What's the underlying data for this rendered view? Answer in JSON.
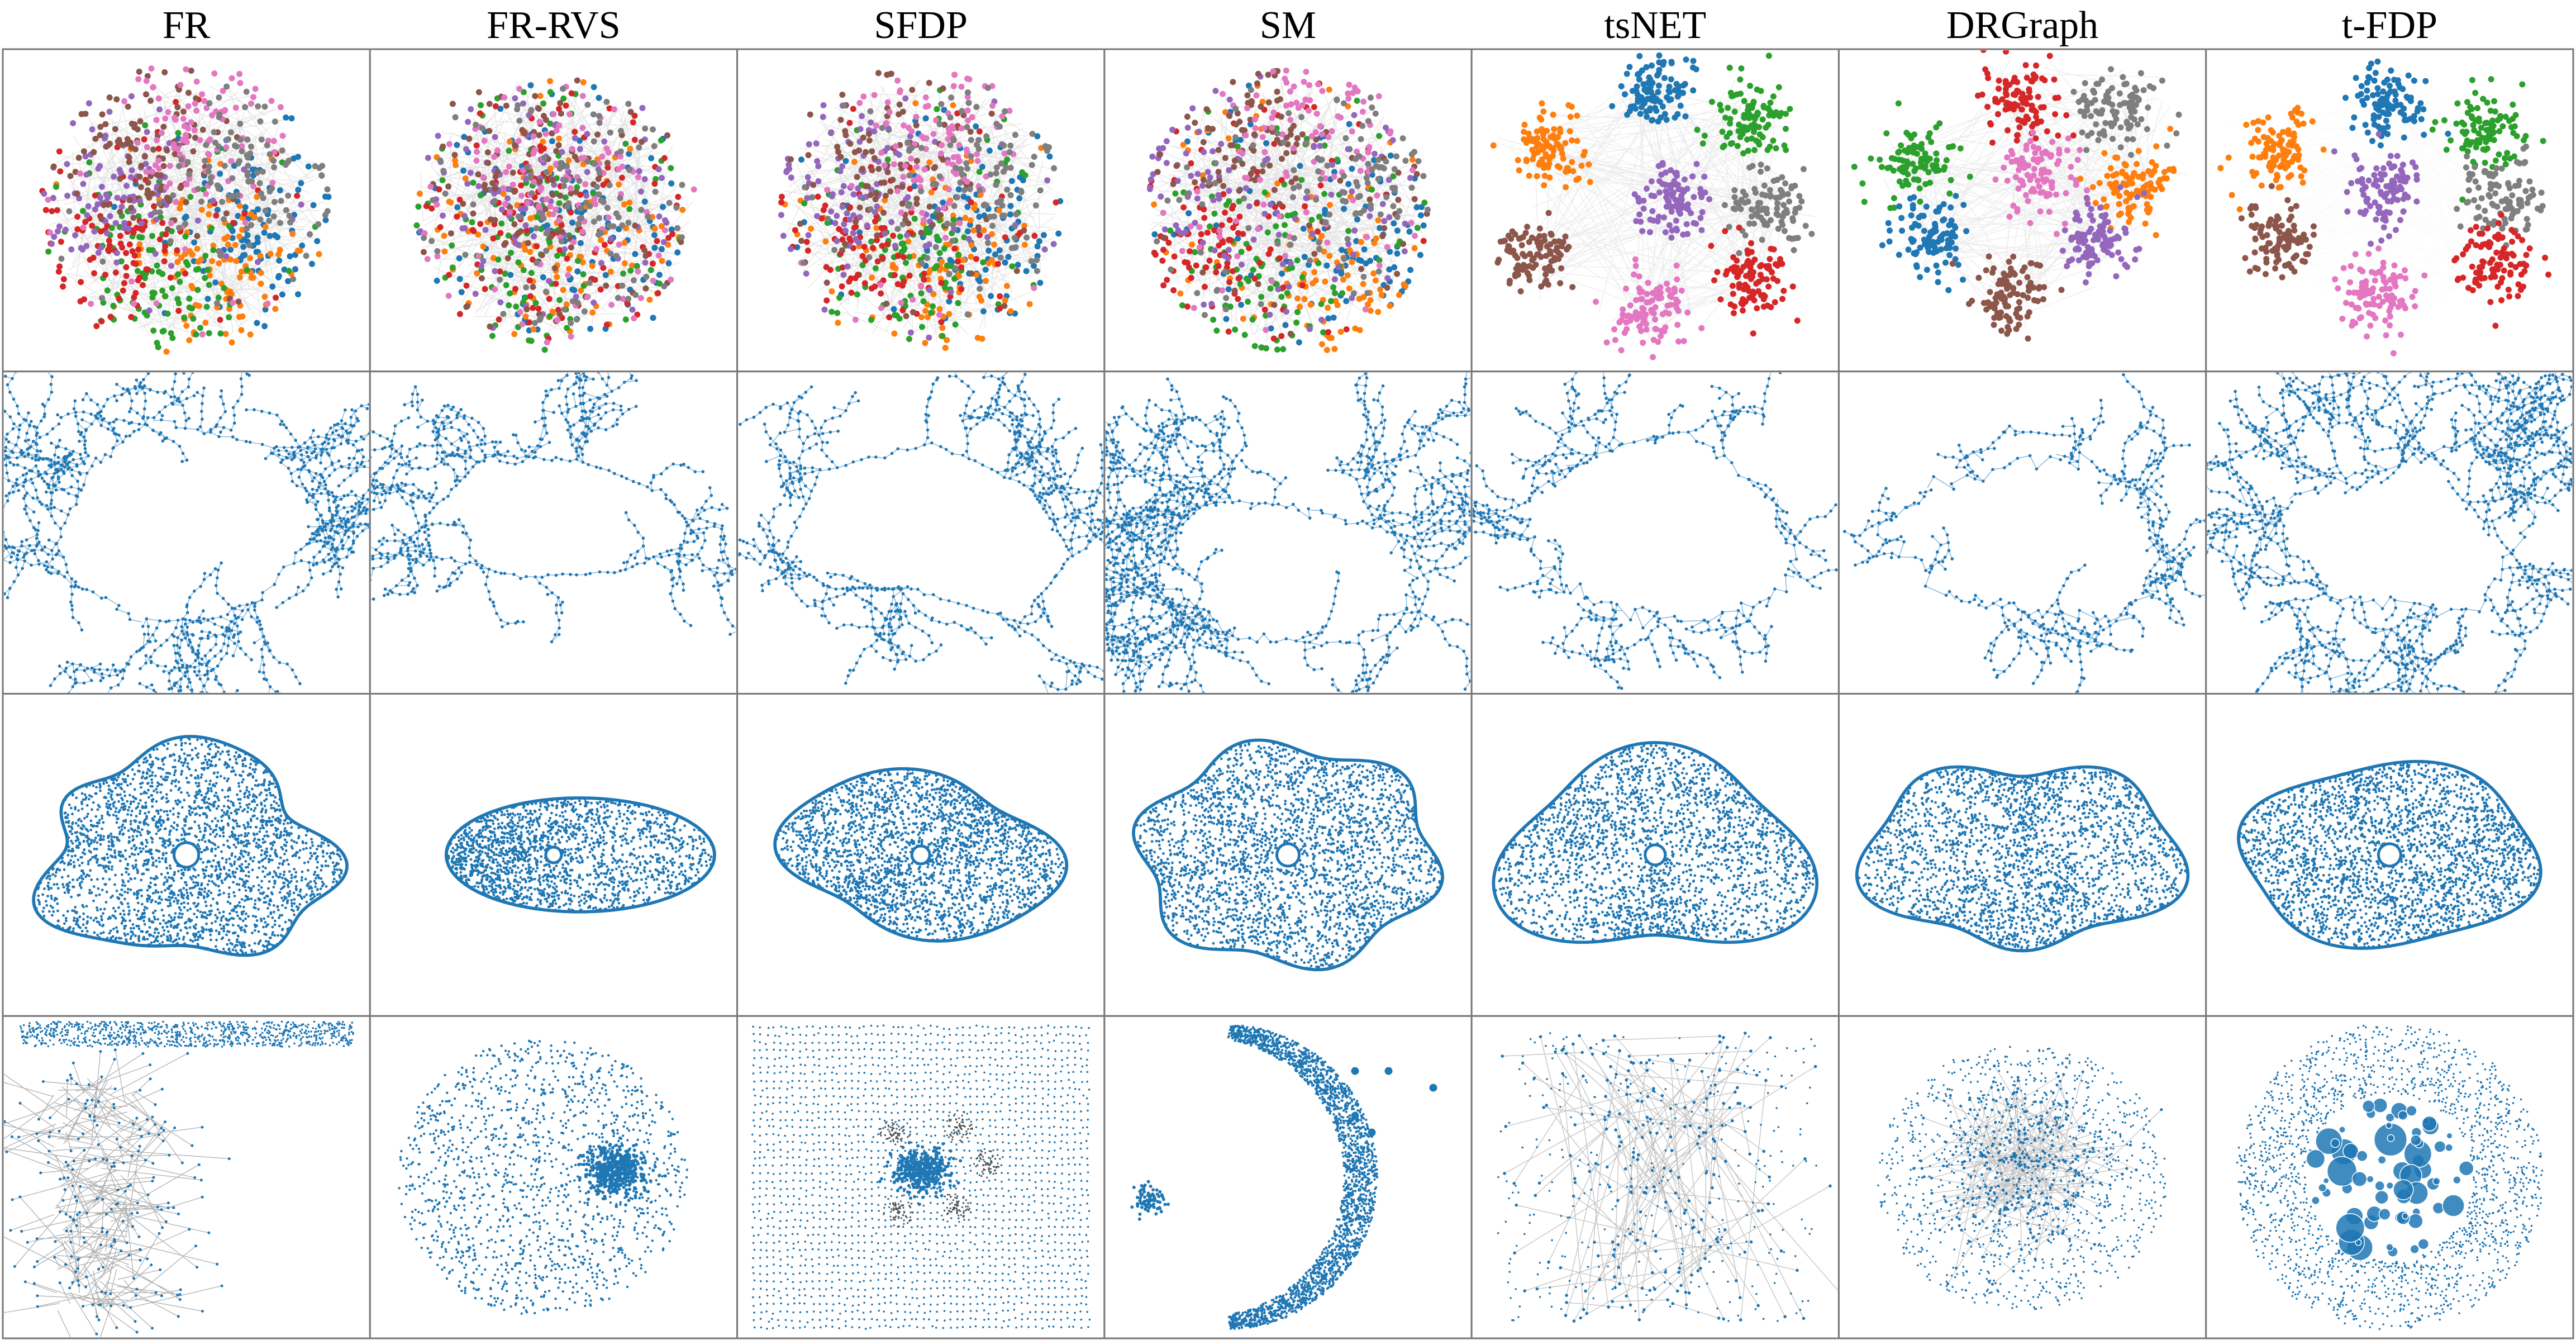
{
  "figure": {
    "columns": [
      "FR",
      "FR-RVS",
      "SFDP",
      "SM",
      "tsNET",
      "DRGraph",
      "t-FDP"
    ],
    "row_count": 4,
    "colors": {
      "node_default": "#1f77b4",
      "edge": "#b0b0b0",
      "border": "#777777",
      "cluster_palette": [
        "#1f77b4",
        "#ff7f0e",
        "#2ca02c",
        "#d62728",
        "#9467bd",
        "#8c564b",
        "#e377c2",
        "#7f7f7f"
      ]
    },
    "row_descriptions": [
      "clustered-graph",
      "tree-like-network",
      "mesh-surface",
      "multi-component-graph"
    ]
  }
}
